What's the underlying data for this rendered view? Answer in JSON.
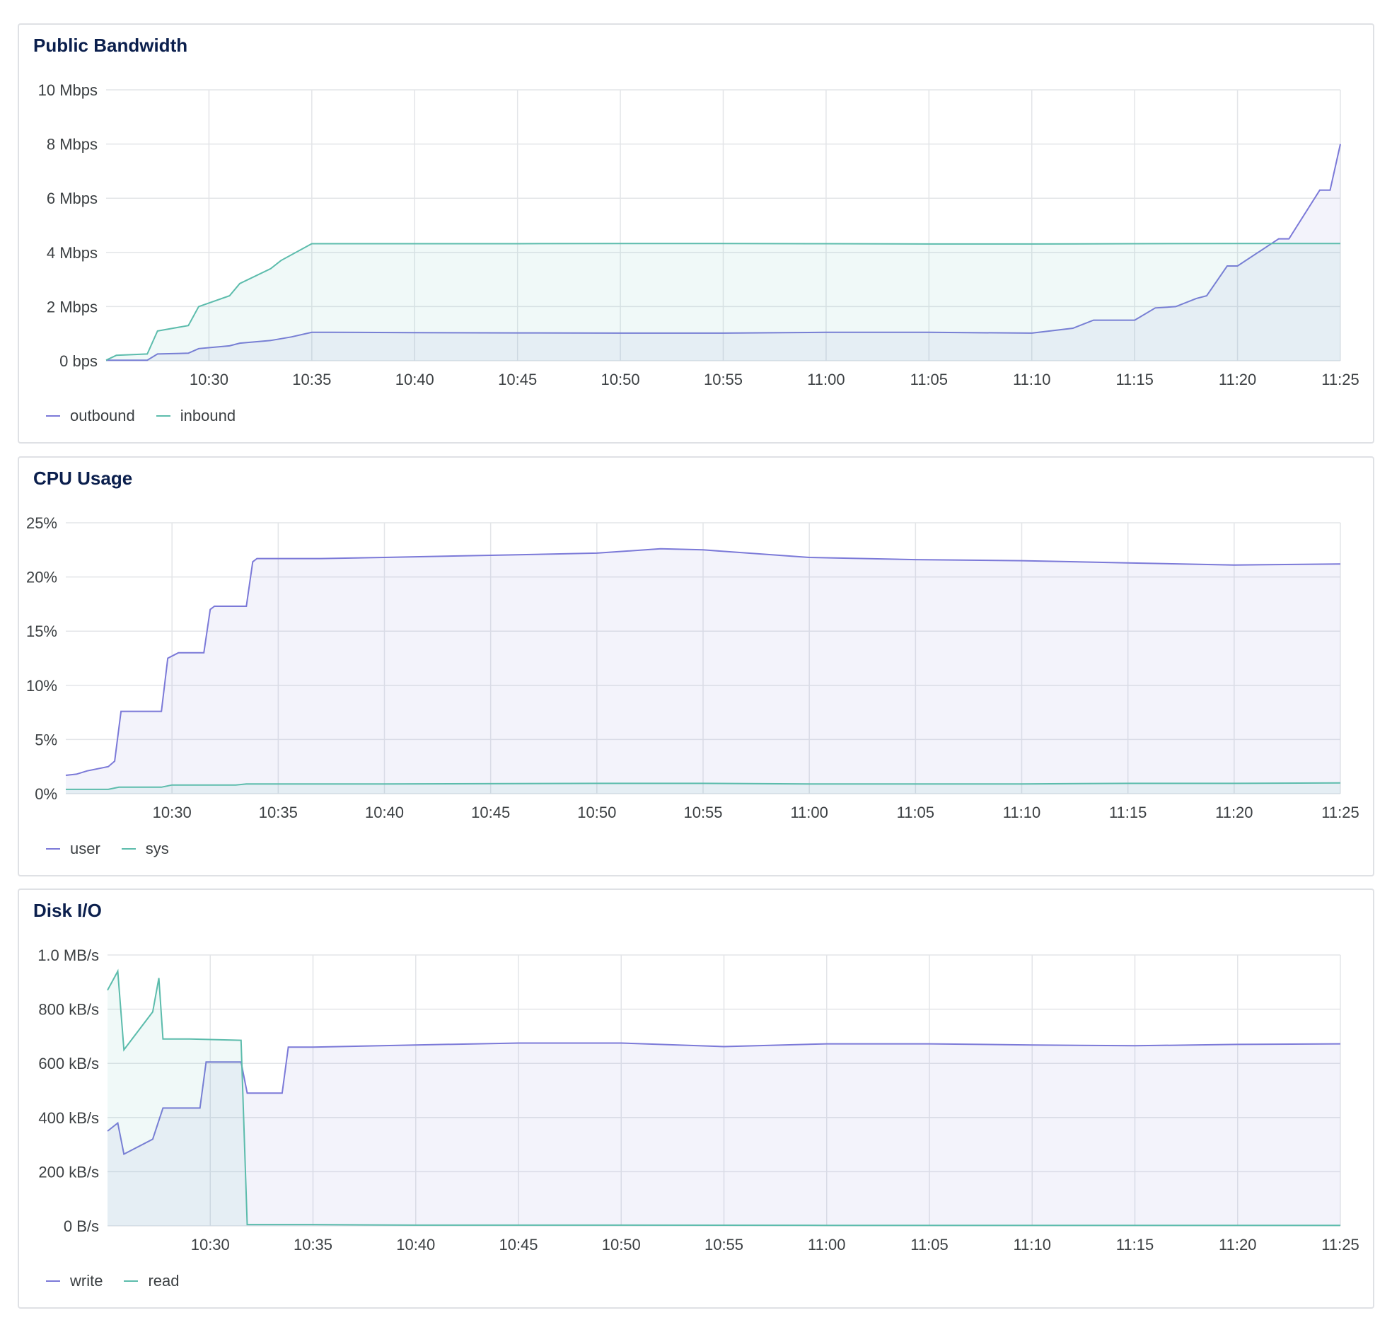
{
  "charts": [
    {
      "title": "Public Bandwidth",
      "legend": [
        {
          "label": "outbound",
          "color": "#7b79d8"
        },
        {
          "label": "inbound",
          "color": "#5cbcac"
        }
      ]
    },
    {
      "title": "CPU Usage",
      "legend": [
        {
          "label": "user",
          "color": "#7b79d8"
        },
        {
          "label": "sys",
          "color": "#5cbcac"
        }
      ]
    },
    {
      "title": "Disk I/O",
      "legend": [
        {
          "label": "write",
          "color": "#7b79d8"
        },
        {
          "label": "read",
          "color": "#5cbcac"
        }
      ]
    }
  ],
  "chart_data": [
    {
      "type": "area",
      "title": "Public Bandwidth",
      "x_start": "10:25",
      "x_end": "11:25",
      "xticks": [
        "10:30",
        "10:35",
        "10:40",
        "10:45",
        "10:50",
        "10:55",
        "11:00",
        "11:05",
        "11:10",
        "11:15",
        "11:20",
        "11:25"
      ],
      "yticks": [
        "0 bps",
        "2 Mbps",
        "4 Mbps",
        "6 Mbps",
        "8 Mbps",
        "10 Mbps"
      ],
      "ylim": [
        0,
        10
      ],
      "yunit": "Mbps",
      "grid": true,
      "legend_position": "bottom-left",
      "series": [
        {
          "name": "outbound",
          "color": "#7b79d8",
          "x": [
            "10:25",
            "10:27",
            "10:27.5",
            "10:29",
            "10:29.5",
            "10:31",
            "10:31.5",
            "10:33",
            "10:34",
            "10:35",
            "10:36",
            "10:40",
            "10:45",
            "10:50",
            "10:55",
            "11:00",
            "11:05",
            "11:10",
            "11:12",
            "11:13",
            "11:15",
            "11:16",
            "11:17",
            "11:18",
            "11:18.5",
            "11:19.5",
            "11:20",
            "11:22",
            "11:22.5",
            "11:24",
            "11:24.5",
            "11:25"
          ],
          "values": [
            0.02,
            0.02,
            0.25,
            0.28,
            0.45,
            0.55,
            0.65,
            0.75,
            0.88,
            1.05,
            1.05,
            1.04,
            1.03,
            1.02,
            1.02,
            1.05,
            1.05,
            1.02,
            1.2,
            1.5,
            1.5,
            1.95,
            2.0,
            2.3,
            2.4,
            3.5,
            3.5,
            4.5,
            4.5,
            6.3,
            6.3,
            8.0
          ]
        },
        {
          "name": "inbound",
          "color": "#5cbcac",
          "x": [
            "10:25",
            "10:25.5",
            "10:27",
            "10:27.5",
            "10:29",
            "10:29.5",
            "10:31",
            "10:31.5",
            "10:33",
            "10:33.5",
            "10:35",
            "10:40",
            "10:45",
            "10:50",
            "10:55",
            "11:00",
            "11:05",
            "11:10",
            "11:15",
            "11:20",
            "11:25"
          ],
          "values": [
            0.02,
            0.2,
            0.25,
            1.1,
            1.3,
            2.0,
            2.4,
            2.85,
            3.4,
            3.7,
            4.32,
            4.32,
            4.32,
            4.33,
            4.33,
            4.32,
            4.31,
            4.31,
            4.32,
            4.33,
            4.33
          ]
        }
      ]
    },
    {
      "type": "area",
      "title": "CPU Usage",
      "x_start": "10:25",
      "x_end": "11:25",
      "xticks": [
        "10:30",
        "10:35",
        "10:40",
        "10:45",
        "10:50",
        "10:55",
        "11:00",
        "11:05",
        "11:10",
        "11:15",
        "11:20",
        "11:25"
      ],
      "yticks": [
        "0%",
        "5%",
        "10%",
        "15%",
        "20%",
        "25%"
      ],
      "ylim": [
        0,
        25
      ],
      "yunit": "%",
      "grid": true,
      "legend_position": "bottom-left",
      "series": [
        {
          "name": "user",
          "color": "#7b79d8",
          "x": [
            "10:25",
            "10:25.5",
            "10:26",
            "10:27",
            "10:27.3",
            "10:27.6",
            "10:29.5",
            "10:29.8",
            "10:30.3",
            "10:31.5",
            "10:31.8",
            "10:32",
            "10:33.5",
            "10:33.8",
            "10:34",
            "10:35",
            "10:37",
            "10:40",
            "10:45",
            "10:50",
            "10:53",
            "10:55",
            "11:00",
            "11:05",
            "11:10",
            "11:15",
            "11:20",
            "11:25"
          ],
          "values": [
            1.7,
            1.8,
            2.1,
            2.5,
            3.0,
            7.6,
            7.6,
            12.5,
            13.0,
            13.0,
            17.0,
            17.3,
            17.3,
            21.4,
            21.7,
            21.7,
            21.7,
            21.8,
            22.0,
            22.2,
            22.6,
            22.5,
            21.8,
            21.6,
            21.5,
            21.3,
            21.1,
            21.2
          ]
        },
        {
          "name": "sys",
          "color": "#5cbcac",
          "x": [
            "10:25",
            "10:27",
            "10:27.5",
            "10:29.5",
            "10:30",
            "10:33",
            "10:33.5",
            "10:40",
            "10:50",
            "10:55",
            "11:00",
            "11:05",
            "11:10",
            "11:15",
            "11:20",
            "11:25"
          ],
          "values": [
            0.4,
            0.4,
            0.6,
            0.6,
            0.8,
            0.8,
            0.9,
            0.9,
            0.95,
            0.95,
            0.9,
            0.9,
            0.9,
            0.95,
            0.95,
            1.0
          ]
        }
      ]
    },
    {
      "type": "area",
      "title": "Disk I/O",
      "x_start": "10:25",
      "x_end": "11:25",
      "xticks": [
        "10:30",
        "10:35",
        "10:40",
        "10:45",
        "10:50",
        "10:55",
        "11:00",
        "11:05",
        "11:10",
        "11:15",
        "11:20",
        "11:25"
      ],
      "yticks": [
        "0 B/s",
        "200 kB/s",
        "400 kB/s",
        "600 kB/s",
        "800 kB/s",
        "1.0 MB/s"
      ],
      "ylim": [
        0,
        1000
      ],
      "yunit": "kB/s",
      "grid": true,
      "legend_position": "bottom-left",
      "series": [
        {
          "name": "write",
          "color": "#7b79d8",
          "x": [
            "10:25",
            "10:25.5",
            "10:25.8",
            "10:27.2",
            "10:27.7",
            "10:29.5",
            "10:29.8",
            "10:31.5",
            "10:31.8",
            "10:33.5",
            "10:33.8",
            "10:35",
            "10:40",
            "10:45",
            "10:50",
            "10:55",
            "11:00",
            "11:05",
            "11:10",
            "11:15",
            "11:20",
            "11:25"
          ],
          "values": [
            350,
            380,
            265,
            320,
            435,
            435,
            605,
            605,
            490,
            490,
            660,
            660,
            668,
            675,
            675,
            662,
            672,
            672,
            668,
            665,
            670,
            672
          ]
        },
        {
          "name": "read",
          "color": "#5cbcac",
          "x": [
            "10:25",
            "10:25.5",
            "10:25.8",
            "10:27.2",
            "10:27.5",
            "10:27.7",
            "10:29",
            "10:31.5",
            "10:31.8",
            "10:35",
            "10:40",
            "10:50",
            "11:00",
            "11:10",
            "11:20",
            "11:25"
          ],
          "values": [
            870,
            940,
            650,
            790,
            915,
            690,
            690,
            685,
            5,
            5,
            3,
            3,
            2,
            2,
            2,
            2
          ]
        }
      ]
    }
  ]
}
